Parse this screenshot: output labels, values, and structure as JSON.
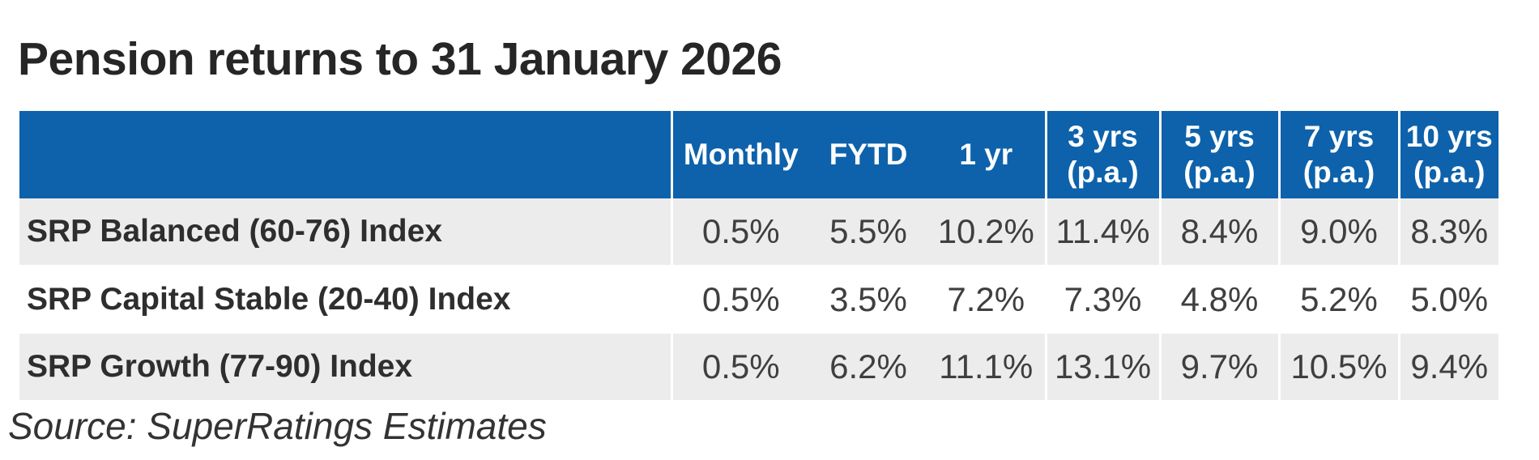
{
  "title": "Pension returns to 31 January 2026",
  "source_note": "Source: SuperRatings Estimates",
  "header": {
    "label_col": "",
    "cols": [
      "Monthly",
      "FYTD",
      "1 yr",
      "3 yrs\n(p.a.)",
      "5 yrs\n(p.a.)",
      "7 yrs\n(p.a.)",
      "10 yrs\n(p.a.)"
    ]
  },
  "chart_data": {
    "type": "table",
    "title": "Pension returns to 31 January 2026",
    "columns": [
      "Monthly",
      "FYTD",
      "1 yr",
      "3 yrs (p.a.)",
      "5 yrs (p.a.)",
      "7 yrs (p.a.)",
      "10 yrs (p.a.)"
    ],
    "rows": [
      {
        "label": "SRP Balanced (60-76) Index",
        "values": [
          "0.5%",
          "5.5%",
          "10.2%",
          "11.4%",
          "8.4%",
          "9.0%",
          "8.3%"
        ]
      },
      {
        "label": "SRP Capital Stable (20-40) Index",
        "values": [
          "0.5%",
          "3.5%",
          "7.2%",
          "7.3%",
          "4.8%",
          "5.2%",
          "5.0%"
        ]
      },
      {
        "label": "SRP Growth (77-90) Index",
        "values": [
          "0.5%",
          "6.2%",
          "11.1%",
          "13.1%",
          "9.7%",
          "10.5%",
          "9.4%"
        ]
      }
    ],
    "source": "Source: SuperRatings Estimates",
    "layout": {
      "legend": "none",
      "grid": "off",
      "header_row": true,
      "alternating_rows": true
    }
  },
  "colors": {
    "header_bg": "#0d62ab",
    "header_text": "#ffffff",
    "row_alt_bg": "#ececec",
    "row_bg": "#ffffff",
    "label_text": "#2e2e2e",
    "value_text": "#3f3f3f",
    "title_text": "#262626",
    "source_text": "#333333"
  }
}
